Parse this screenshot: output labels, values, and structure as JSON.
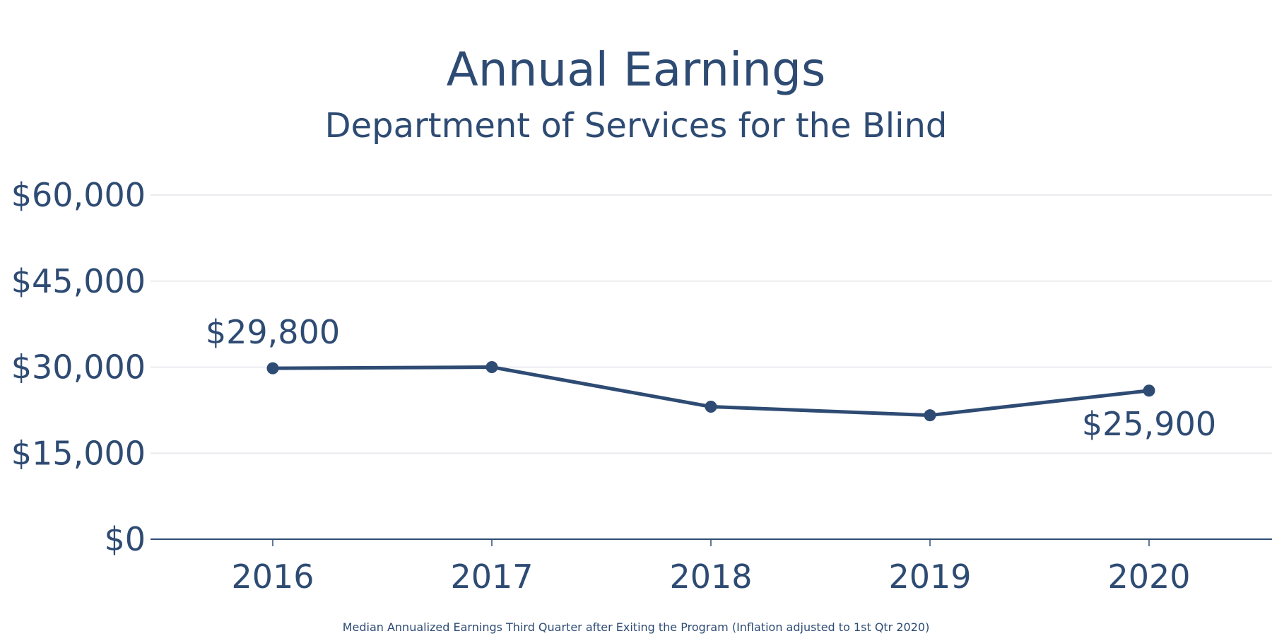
{
  "chart_data": {
    "type": "line",
    "title": "Annual Earnings",
    "subtitle": "Department of Services for the Blind",
    "footnote": "Median Annualized Earnings Third Quarter after Exiting the Program (Inflation adjusted to 1st Qtr 2020)",
    "categories": [
      "2016",
      "2017",
      "2018",
      "2019",
      "2020"
    ],
    "series": [
      {
        "values": [
          29800,
          30000,
          23100,
          21600,
          25900
        ]
      }
    ],
    "data_labels": [
      {
        "index": 0,
        "text": "$29,800",
        "placement": "above"
      },
      {
        "index": 4,
        "text": "$25,900",
        "placement": "below"
      }
    ],
    "y_ticks": [
      0,
      15000,
      30000,
      45000,
      60000
    ],
    "y_tick_labels": [
      "$0",
      "$15,000",
      "$30,000",
      "$45,000",
      "$60,000"
    ],
    "ylim": [
      0,
      60000
    ],
    "grid": true,
    "legend": "none",
    "colors": {
      "line": "#2e4b73",
      "text": "#2e4b73",
      "grid": "#e3e6ea",
      "axis": "#2e4b73"
    }
  }
}
